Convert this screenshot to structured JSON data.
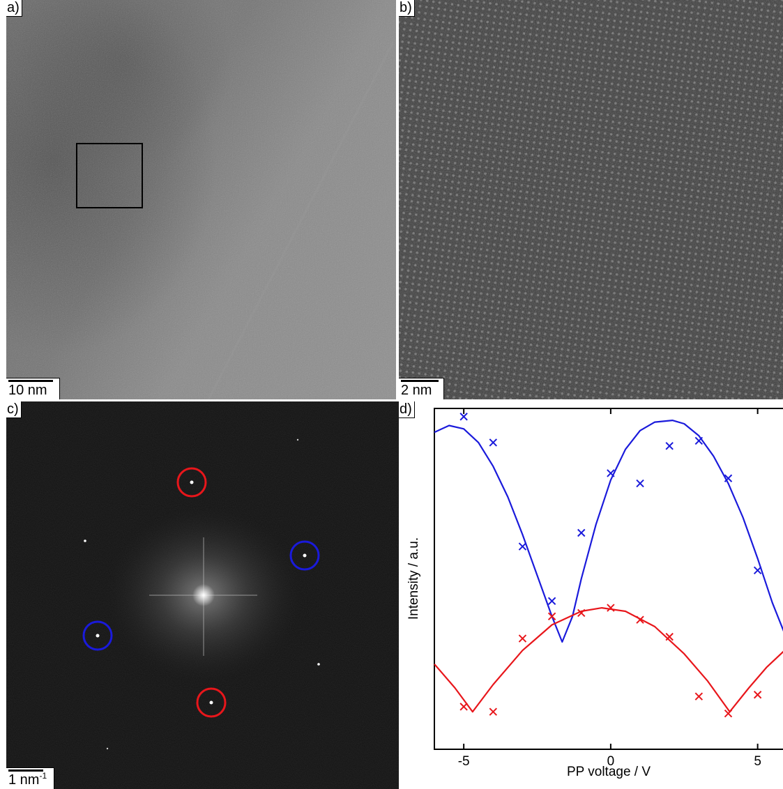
{
  "panels": {
    "a": {
      "label": "a)",
      "scale_bar": "10 nm"
    },
    "b": {
      "label": "b)",
      "scale_bar": "2 nm"
    },
    "c": {
      "label": "c)",
      "scale_bar_text": "1 nm",
      "scale_bar_exp": "-1"
    },
    "d": {
      "label": "d)"
    }
  },
  "colors": {
    "blue": "#1a1adb",
    "red": "#e8161b"
  },
  "chart_data": {
    "type": "line",
    "xlabel": "PP voltage / V",
    "ylabel": "Intensity / a.u.",
    "xlim": [
      -6,
      6.1
    ],
    "ylim": [
      0,
      10
    ],
    "xticks": [
      -5,
      0,
      5
    ],
    "xtick_labels": [
      "-5",
      "0",
      "5"
    ],
    "ytick_labels_shown": false,
    "series": [
      {
        "color": "#1a1adb",
        "points_x": [
          -5,
          -4,
          -3,
          -2,
          -1,
          0,
          1,
          2,
          3,
          4,
          5
        ],
        "points_y": [
          9.76,
          9.0,
          5.95,
          4.35,
          6.35,
          8.1,
          7.8,
          8.9,
          9.05,
          7.95,
          5.25
        ],
        "fit_x": [
          -6.0,
          -5.5,
          -5.0,
          -4.5,
          -4.0,
          -3.5,
          -3.0,
          -2.5,
          -2.0,
          -1.65,
          -1.3,
          -1.0,
          -0.5,
          0.0,
          0.5,
          1.0,
          1.5,
          2.1,
          2.5,
          3.0,
          3.5,
          4.0,
          4.5,
          5.0,
          5.5,
          6.1
        ],
        "fit_y": [
          9.3,
          9.5,
          9.4,
          9.0,
          8.3,
          7.4,
          6.3,
          5.1,
          3.9,
          3.15,
          3.9,
          5.0,
          6.6,
          7.9,
          8.8,
          9.35,
          9.6,
          9.65,
          9.55,
          9.2,
          8.6,
          7.8,
          6.8,
          5.6,
          4.3,
          3.0
        ]
      },
      {
        "color": "#e8161b",
        "points_x": [
          -5,
          -4,
          -3,
          -2,
          -1,
          0,
          1,
          2,
          3,
          4,
          5
        ],
        "points_y": [
          1.25,
          1.1,
          3.25,
          3.9,
          4.0,
          4.15,
          3.8,
          3.3,
          1.55,
          1.05,
          1.6
        ],
        "fit_x": [
          -6.0,
          -5.3,
          -4.7,
          -4.0,
          -3.0,
          -2.0,
          -1.0,
          -0.3,
          0.5,
          1.5,
          2.5,
          3.3,
          4.05,
          4.7,
          5.3,
          6.1
        ],
        "fit_y": [
          2.5,
          1.8,
          1.1,
          1.9,
          2.9,
          3.65,
          4.05,
          4.15,
          4.05,
          3.6,
          2.8,
          2.0,
          1.1,
          1.8,
          2.4,
          3.05
        ]
      }
    ]
  }
}
